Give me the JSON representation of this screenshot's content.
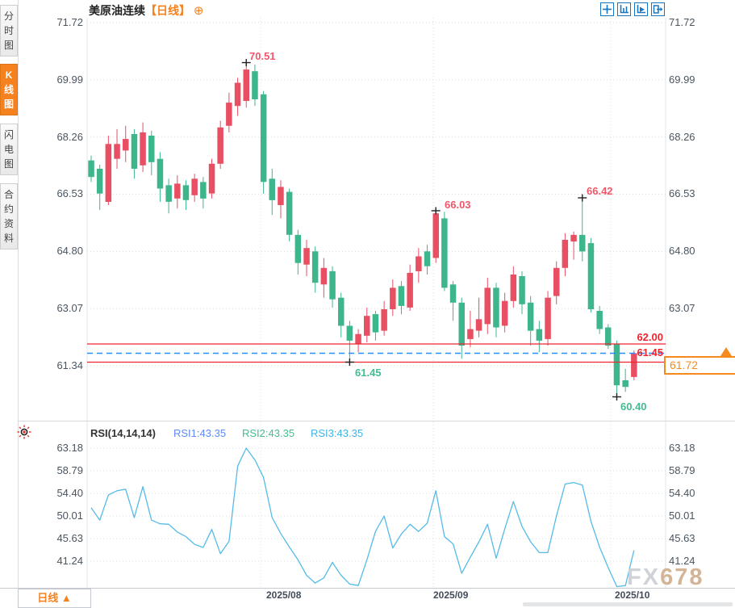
{
  "sidebar": {
    "items": [
      {
        "label": "分时图",
        "selected": false
      },
      {
        "label": "K线图",
        "selected": true
      },
      {
        "label": "闪电图",
        "selected": false
      },
      {
        "label": "合约资料",
        "selected": false
      }
    ]
  },
  "header": {
    "instrument": "美原油连续",
    "period_tag": "【日线】",
    "add_icon_glyph": "⊕",
    "toolbar_icons": [
      "pan-crosshair-icon",
      "axis-scale-icon",
      "axis-play-icon",
      "exit-chart-icon"
    ]
  },
  "price_pane": {
    "axis_labels": [
      "71.72",
      "69.99",
      "68.26",
      "66.53",
      "64.80",
      "63.07",
      "61.34"
    ],
    "annotations": {
      "high1": "70.51",
      "high2": "66.03",
      "high3": "66.42",
      "low1": "61.45",
      "low2": "60.40"
    },
    "levels": {
      "resistance": "62.00",
      "support": "61.45",
      "last_price": "61.72"
    }
  },
  "rsi_pane": {
    "title": "RSI(14,14,14)",
    "rsi1_label": "RSI1:43.35",
    "rsi2_label": "RSI2:43.35",
    "rsi3_label": "RSI3:43.35",
    "axis_labels": [
      "63.18",
      "58.79",
      "54.40",
      "50.01",
      "45.63",
      "41.24"
    ]
  },
  "x_axis": {
    "labels": [
      "2025/08",
      "2025/09",
      "2025/10"
    ]
  },
  "footer": {
    "period_button": "日线 ▲"
  },
  "watermark": {
    "part1": "FX",
    "part2": "678"
  },
  "colors": {
    "up": "#e84f63",
    "down": "#3eb68b",
    "line_red": "#f0242e",
    "line_blue": "#2d8cf0",
    "accent_orange": "#f5821f",
    "rsi_line": "#55bbe8",
    "grid": "#d9dce1",
    "border": "#e2e4e8",
    "annotation_pink": "#f2566a",
    "annotation_green": "#43bd8f",
    "cross": "#222222"
  },
  "chart_data": [
    {
      "type": "candlestick",
      "title": "美原油连续 日线",
      "ylim": [
        61.34,
        71.72
      ],
      "y_ticks": [
        71.72,
        69.99,
        68.26,
        66.53,
        64.8,
        63.07,
        61.34
      ],
      "x_labels": [
        "2025/08",
        "2025/09",
        "2025/10"
      ],
      "hlines": [
        62.0,
        61.45
      ],
      "dashed_hline": 61.72,
      "last_price": 61.72,
      "annotated_points": [
        {
          "candle": 19,
          "price": 70.51,
          "label": "70.51"
        },
        {
          "candle": 41,
          "price": 66.03,
          "label": "66.03"
        },
        {
          "candle": 58,
          "price": 66.42,
          "label": "66.42"
        },
        {
          "candle": 31,
          "price": 61.45,
          "label": "61.45"
        },
        {
          "candle": 62,
          "price": 60.4,
          "label": "60.40"
        }
      ],
      "candles": [
        [
          67.55,
          67.7,
          66.9,
          67.05
        ],
        [
          67.3,
          67.42,
          66.05,
          66.55
        ],
        [
          66.3,
          68.3,
          66.2,
          68.05
        ],
        [
          67.6,
          68.5,
          67.3,
          68.05
        ],
        [
          67.85,
          68.6,
          67.5,
          68.2
        ],
        [
          68.35,
          68.5,
          67.0,
          67.3
        ],
        [
          67.4,
          68.7,
          67.2,
          68.4
        ],
        [
          68.3,
          68.45,
          67.1,
          67.5
        ],
        [
          67.6,
          67.8,
          66.3,
          66.7
        ],
        [
          66.8,
          67.0,
          65.95,
          66.3
        ],
        [
          66.4,
          67.1,
          66.1,
          66.85
        ],
        [
          66.8,
          66.95,
          66.05,
          66.35
        ],
        [
          66.5,
          67.15,
          66.3,
          67.0
        ],
        [
          66.9,
          67.05,
          66.1,
          66.4
        ],
        [
          66.55,
          67.6,
          66.4,
          67.45
        ],
        [
          67.45,
          68.75,
          67.3,
          68.55
        ],
        [
          68.6,
          69.6,
          68.4,
          69.3
        ],
        [
          69.2,
          70.05,
          68.9,
          69.9
        ],
        [
          69.35,
          70.51,
          69.15,
          70.3
        ],
        [
          70.25,
          70.45,
          69.2,
          69.4
        ],
        [
          69.55,
          69.65,
          66.55,
          66.9
        ],
        [
          67.0,
          67.3,
          65.9,
          66.35
        ],
        [
          66.2,
          66.95,
          65.8,
          66.75
        ],
        [
          66.6,
          66.7,
          65.1,
          65.3
        ],
        [
          65.3,
          65.45,
          64.1,
          64.45
        ],
        [
          64.4,
          65.15,
          64.05,
          64.9
        ],
        [
          64.8,
          64.95,
          63.55,
          63.85
        ],
        [
          63.8,
          64.6,
          63.4,
          64.3
        ],
        [
          64.2,
          64.35,
          63.1,
          63.35
        ],
        [
          63.4,
          63.55,
          62.2,
          62.55
        ],
        [
          62.55,
          62.7,
          61.45,
          62.1
        ],
        [
          62.0,
          62.45,
          61.75,
          62.3
        ],
        [
          62.25,
          63.1,
          62.05,
          62.85
        ],
        [
          62.9,
          63.0,
          62.1,
          62.35
        ],
        [
          62.4,
          63.3,
          62.25,
          63.05
        ],
        [
          63.05,
          63.95,
          62.85,
          63.7
        ],
        [
          63.75,
          63.9,
          62.9,
          63.15
        ],
        [
          63.1,
          64.4,
          63.0,
          64.15
        ],
        [
          64.2,
          64.9,
          63.85,
          64.65
        ],
        [
          64.8,
          65.0,
          64.1,
          64.35
        ],
        [
          64.6,
          66.03,
          64.45,
          65.95
        ],
        [
          65.8,
          66.0,
          63.6,
          63.7
        ],
        [
          63.8,
          63.9,
          62.7,
          63.25
        ],
        [
          63.25,
          63.4,
          61.55,
          61.95
        ],
        [
          62.15,
          63.0,
          61.9,
          62.45
        ],
        [
          62.4,
          63.4,
          62.2,
          62.75
        ],
        [
          62.6,
          64.0,
          62.3,
          63.7
        ],
        [
          63.7,
          63.85,
          62.2,
          62.5
        ],
        [
          62.55,
          63.55,
          62.35,
          63.3
        ],
        [
          63.3,
          64.35,
          63.1,
          64.1
        ],
        [
          64.05,
          64.2,
          62.9,
          63.2
        ],
        [
          63.25,
          63.45,
          61.95,
          62.4
        ],
        [
          62.45,
          62.7,
          61.75,
          62.1
        ],
        [
          62.15,
          63.6,
          61.95,
          63.4
        ],
        [
          63.45,
          64.5,
          63.2,
          64.3
        ],
        [
          64.3,
          65.35,
          64.05,
          65.15
        ],
        [
          65.1,
          65.4,
          64.55,
          65.3
        ],
        [
          65.3,
          66.42,
          64.5,
          64.8
        ],
        [
          65.05,
          65.2,
          62.95,
          63.05
        ],
        [
          63.0,
          63.15,
          62.3,
          62.45
        ],
        [
          62.5,
          62.6,
          61.85,
          61.95
        ],
        [
          62.0,
          62.1,
          60.4,
          60.75
        ],
        [
          60.9,
          61.25,
          60.55,
          60.7
        ],
        [
          61.0,
          61.8,
          60.9,
          61.72
        ]
      ]
    },
    {
      "type": "line",
      "name": "RSI(14,14,14)",
      "params": [
        14,
        14,
        14
      ],
      "last_values": {
        "rsi1": 43.35,
        "rsi2": 43.35,
        "rsi3": 43.35
      },
      "ylim": [
        41.24,
        63.18
      ],
      "y_ticks": [
        63.18,
        58.79,
        54.4,
        50.01,
        45.63,
        41.24
      ],
      "values": [
        51.6,
        49.2,
        54.1,
        54.9,
        55.2,
        49.7,
        55.7,
        49.2,
        48.5,
        48.4,
        46.9,
        46.0,
        44.5,
        43.9,
        47.4,
        42.7,
        45.1,
        59.7,
        63.18,
        60.9,
        57.5,
        49.7,
        46.6,
        44.0,
        41.5,
        38.5,
        37.0,
        38.0,
        41.0,
        38.5,
        36.8,
        36.5,
        41.5,
        47.0,
        50.0,
        43.8,
        46.5,
        48.4,
        47.0,
        48.6,
        54.9,
        46.0,
        44.6,
        38.9,
        42.0,
        45.0,
        48.4,
        41.8,
        47.5,
        52.8,
        48.0,
        45.0,
        42.9,
        42.9,
        50.0,
        56.2,
        56.5,
        56.0,
        49.0,
        44.0,
        40.0,
        36.3,
        36.5,
        43.35
      ]
    }
  ]
}
